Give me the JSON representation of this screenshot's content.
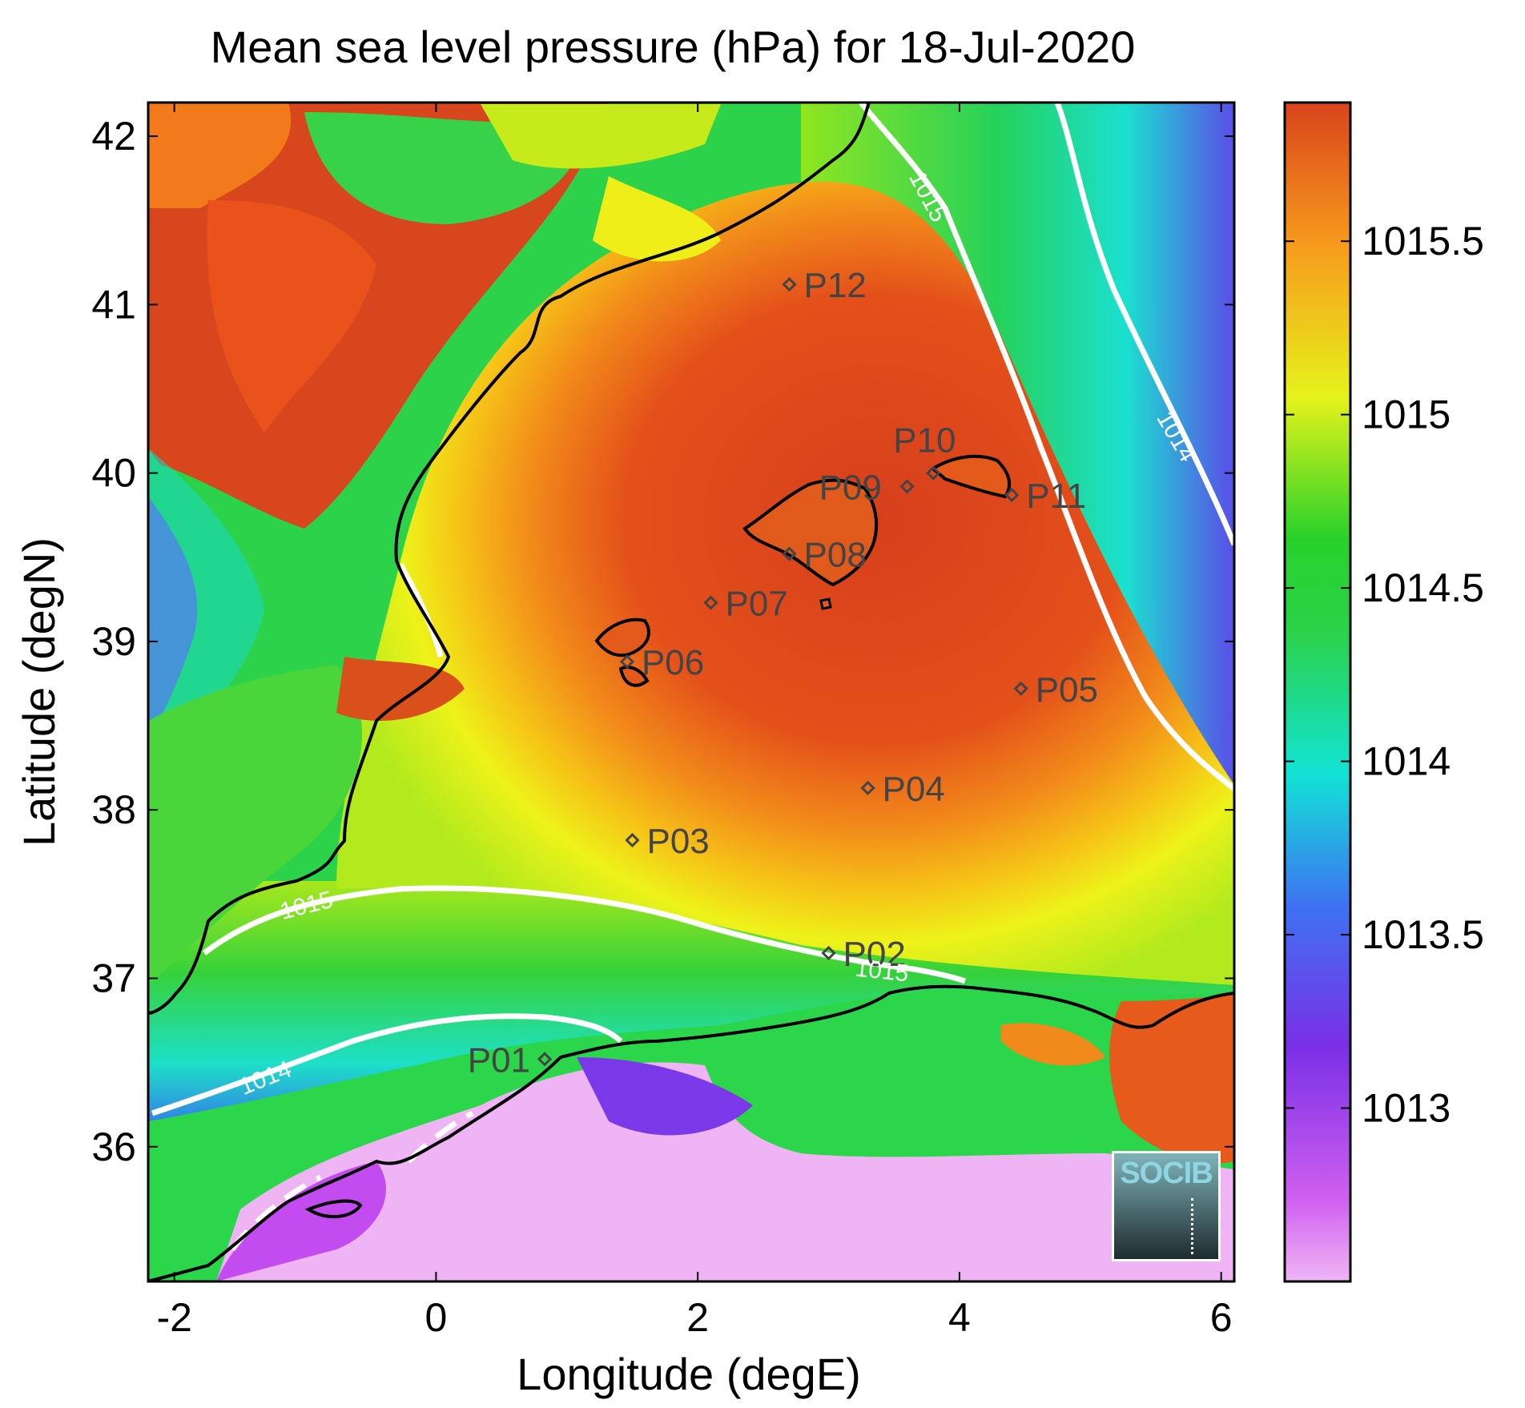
{
  "title": "Mean sea level pressure (hPa) for 18-Jul-2020",
  "logo_text": "SOCIB",
  "colors": {
    "high": "#d9441c",
    "mid": "#f7f00f",
    "green": "#24d12a",
    "cyan": "#12e3cf",
    "blue": "#3a7ff0",
    "purple": "#7a2fe6",
    "low": "#edb1f2",
    "contour": "#ffffff",
    "coast": "#000000"
  },
  "chart_data": {
    "type": "heatmap",
    "title": "Mean sea level pressure (hPa) for 18-Jul-2020",
    "xlabel": "Longitude (degE)",
    "ylabel": "Latitude (degN)",
    "xlim": [
      -2.2,
      6.1
    ],
    "ylim": [
      35.2,
      42.2
    ],
    "x_ticks": [
      -2,
      0,
      2,
      4,
      6
    ],
    "y_ticks": [
      36,
      37,
      38,
      39,
      40,
      41,
      42
    ],
    "colorbar": {
      "range": [
        1012.5,
        1015.9
      ],
      "ticks": [
        1013,
        1013.5,
        1014,
        1014.5,
        1015,
        1015.5
      ]
    },
    "contour_labels": [
      "1015",
      "1015",
      "1015",
      "1014",
      "1014"
    ],
    "points": [
      {
        "name": "P01",
        "lon": 0.83,
        "lat": 36.52
      },
      {
        "name": "P02",
        "lon": 3.0,
        "lat": 37.15
      },
      {
        "name": "P03",
        "lon": 1.5,
        "lat": 37.82
      },
      {
        "name": "P04",
        "lon": 3.3,
        "lat": 38.13
      },
      {
        "name": "P05",
        "lon": 4.47,
        "lat": 38.72
      },
      {
        "name": "P06",
        "lon": 1.46,
        "lat": 38.88
      },
      {
        "name": "P07",
        "lon": 2.1,
        "lat": 39.23
      },
      {
        "name": "P08",
        "lon": 2.7,
        "lat": 39.52
      },
      {
        "name": "P09",
        "lon": 3.6,
        "lat": 39.92
      },
      {
        "name": "P10",
        "lon": 3.8,
        "lat": 40.0
      },
      {
        "name": "P11",
        "lon": 4.4,
        "lat": 39.87
      },
      {
        "name": "P12",
        "lon": 2.7,
        "lat": 41.12
      }
    ]
  }
}
